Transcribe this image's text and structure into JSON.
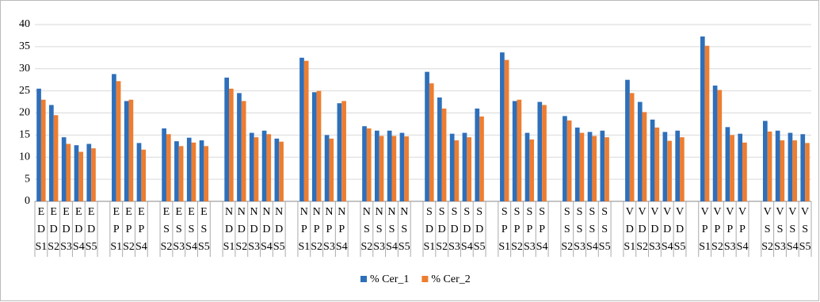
{
  "chart_data": {
    "type": "bar",
    "categories": [
      [
        "E",
        "D",
        "S1"
      ],
      [
        "E",
        "D",
        "S2"
      ],
      [
        "E",
        "D",
        "S3"
      ],
      [
        "E",
        "D",
        "S4"
      ],
      [
        "E",
        "D",
        "S5"
      ],
      null,
      [
        "E",
        "P",
        "S1"
      ],
      [
        "E",
        "P",
        "S2"
      ],
      [
        "E",
        "P",
        "S4"
      ],
      null,
      [
        "E",
        "S",
        "S2"
      ],
      [
        "E",
        "S",
        "S3"
      ],
      [
        "E",
        "S",
        "S4"
      ],
      [
        "E",
        "S",
        "S5"
      ],
      null,
      [
        "N",
        "D",
        "S1"
      ],
      [
        "N",
        "D",
        "S2"
      ],
      [
        "N",
        "D",
        "S3"
      ],
      [
        "N",
        "D",
        "S4"
      ],
      [
        "N",
        "D",
        "S5"
      ],
      null,
      [
        "N",
        "P",
        "S1"
      ],
      [
        "N",
        "P",
        "S2"
      ],
      [
        "N",
        "P",
        "S3"
      ],
      [
        "N",
        "P",
        "S4"
      ],
      null,
      [
        "N",
        "S",
        "S2"
      ],
      [
        "N",
        "S",
        "S3"
      ],
      [
        "N",
        "S",
        "S4"
      ],
      [
        "N",
        "S",
        "S5"
      ],
      null,
      [
        "S",
        "D",
        "S1"
      ],
      [
        "S",
        "D",
        "S2"
      ],
      [
        "S",
        "D",
        "S3"
      ],
      [
        "S",
        "D",
        "S4"
      ],
      [
        "S",
        "D",
        "S5"
      ],
      null,
      [
        "S",
        "P",
        "S1"
      ],
      [
        "S",
        "P",
        "S2"
      ],
      [
        "S",
        "P",
        "S3"
      ],
      [
        "S",
        "P",
        "S4"
      ],
      null,
      [
        "S",
        "S",
        "S2"
      ],
      [
        "S",
        "S",
        "S3"
      ],
      [
        "S",
        "S",
        "S4"
      ],
      [
        "S",
        "S",
        "S5"
      ],
      null,
      [
        "V",
        "D",
        "S1"
      ],
      [
        "V",
        "D",
        "S2"
      ],
      [
        "V",
        "D",
        "S3"
      ],
      [
        "V",
        "D",
        "S4"
      ],
      [
        "V",
        "D",
        "S5"
      ],
      null,
      [
        "V",
        "P",
        "S1"
      ],
      [
        "V",
        "P",
        "S2"
      ],
      [
        "V",
        "P",
        "S3"
      ],
      [
        "V",
        "P",
        "S4"
      ],
      null,
      [
        "V",
        "S",
        "S2"
      ],
      [
        "V",
        "S",
        "S3"
      ],
      [
        "V",
        "S",
        "S4"
      ],
      [
        "V",
        "S",
        "S5"
      ]
    ],
    "series": [
      {
        "name": "% Cer_1",
        "color": "#2e6fba",
        "values": [
          25.5,
          21.8,
          14.5,
          12.7,
          13,
          null,
          28.8,
          22.7,
          13.2,
          null,
          16.5,
          13.6,
          14.4,
          13.8,
          null,
          28,
          24.5,
          15.5,
          16,
          14.2,
          null,
          32.5,
          24.7,
          15,
          22.2,
          null,
          17,
          16,
          16,
          15.5,
          null,
          29.3,
          23.5,
          15.3,
          15.5,
          21,
          null,
          33.7,
          22.7,
          15.5,
          22.5,
          null,
          19.3,
          16.7,
          15.7,
          16,
          null,
          27.5,
          22.5,
          18.5,
          15.7,
          16,
          null,
          37.3,
          26.2,
          16.8,
          15.3,
          null,
          18.2,
          16,
          15.5,
          15.2
        ]
      },
      {
        "name": "% Cer_2",
        "color": "#ed7d31",
        "values": [
          23,
          19.5,
          13,
          11.2,
          12,
          null,
          27.2,
          23,
          11.7,
          null,
          15.2,
          12.5,
          13.3,
          12.5,
          null,
          25.5,
          22.7,
          14.5,
          15.2,
          13.5,
          null,
          31.8,
          25,
          14.2,
          22.7,
          null,
          16.5,
          14.8,
          14.8,
          14.7,
          null,
          26.7,
          21,
          13.8,
          14.5,
          19.2,
          null,
          32,
          23,
          14,
          21.8,
          null,
          18.3,
          15.5,
          14.8,
          14.5,
          null,
          24.5,
          20.2,
          16.7,
          13.7,
          14.5,
          null,
          35.2,
          25.2,
          15,
          13.3,
          null,
          15.8,
          13.8,
          13.8,
          13.2
        ]
      }
    ],
    "ylim": [
      0,
      40
    ],
    "yticks": [
      0,
      5,
      10,
      15,
      20,
      25,
      30,
      35,
      40
    ],
    "grid": true,
    "legend": "bottom"
  }
}
